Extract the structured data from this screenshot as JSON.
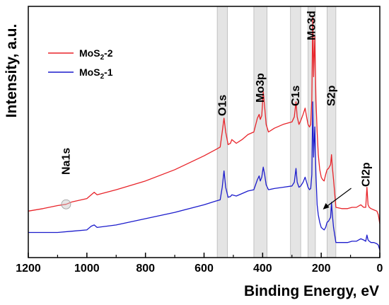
{
  "chart_data": {
    "type": "line",
    "xlabel": "Binding Energy, eV",
    "ylabel": "Intensity, a.u.",
    "xlim": [
      1200,
      0
    ],
    "x_reversed": true,
    "xticks": [
      1200,
      1000,
      800,
      600,
      400,
      200,
      0
    ],
    "y_ticks_shown": false,
    "grid": false,
    "legend_position": "top-left",
    "colors": {
      "MoS2-2": "#e8242a",
      "MoS2-1": "#1c1ccc",
      "band": "#d0d0d0"
    },
    "bands": [
      {
        "label": "O1s",
        "range": [
          555,
          520
        ]
      },
      {
        "label": "Mo3p",
        "range": [
          430,
          385
        ]
      },
      {
        "label": "C1s",
        "range": [
          305,
          270
        ]
      },
      {
        "label": "Mo3d",
        "range": [
          245,
          220
        ]
      },
      {
        "label": "S2p",
        "range": [
          180,
          150
        ]
      }
    ],
    "annotations": [
      {
        "label": "Na1s",
        "x": 1071
      },
      {
        "label": "Cl2p",
        "x": 199,
        "arrow": true
      }
    ],
    "series": [
      {
        "name": "MoS2-2",
        "legend_main": "MoS",
        "legend_sub": "2",
        "legend_suffix": "-2",
        "x": [
          1200,
          1150,
          1100,
          1071,
          1050,
          1000,
          985,
          975,
          965,
          900,
          800,
          700,
          600,
          560,
          545,
          538,
          532,
          526,
          518,
          510,
          505,
          490,
          470,
          450,
          430,
          418,
          412,
          408,
          403,
          398,
          393,
          388,
          380,
          360,
          330,
          300,
          292,
          286,
          282,
          276,
          270,
          262,
          255,
          250,
          245,
          240,
          236,
          232,
          229,
          226,
          222,
          218,
          214,
          210,
          205,
          200,
          195,
          190,
          185,
          180,
          175,
          168,
          165,
          162,
          158,
          150,
          130,
          110,
          95,
          80,
          65,
          55,
          48,
          44,
          40,
          36,
          30,
          20,
          10,
          5,
          0
        ],
        "y": [
          0.185,
          0.195,
          0.207,
          0.212,
          0.222,
          0.235,
          0.25,
          0.26,
          0.25,
          0.27,
          0.305,
          0.35,
          0.405,
          0.43,
          0.44,
          0.5,
          0.555,
          0.5,
          0.45,
          0.455,
          0.47,
          0.455,
          0.47,
          0.49,
          0.5,
          0.555,
          0.57,
          0.55,
          0.565,
          0.66,
          0.6,
          0.53,
          0.5,
          0.515,
          0.53,
          0.54,
          0.56,
          0.62,
          0.56,
          0.53,
          0.545,
          0.57,
          0.595,
          0.56,
          0.53,
          0.52,
          0.53,
          0.63,
          0.96,
          0.72,
          0.88,
          0.63,
          0.5,
          0.41,
          0.35,
          0.32,
          0.31,
          0.305,
          0.33,
          0.35,
          0.355,
          0.37,
          0.41,
          0.36,
          0.31,
          0.2,
          0.195,
          0.195,
          0.2,
          0.2,
          0.21,
          0.2,
          0.2,
          0.28,
          0.21,
          0.2,
          0.195,
          0.19,
          0.185,
          0.17,
          0.135
        ]
      },
      {
        "name": "MoS2-1",
        "legend_main": "MoS",
        "legend_sub": "2",
        "legend_suffix": "-1",
        "x": [
          1200,
          1100,
          1050,
          1000,
          985,
          975,
          965,
          900,
          800,
          700,
          600,
          560,
          545,
          538,
          532,
          526,
          518,
          510,
          505,
          490,
          470,
          450,
          430,
          418,
          412,
          408,
          403,
          398,
          393,
          388,
          380,
          360,
          330,
          300,
          292,
          286,
          282,
          276,
          270,
          262,
          255,
          250,
          245,
          240,
          236,
          232,
          229,
          226,
          222,
          218,
          214,
          210,
          205,
          200,
          195,
          190,
          185,
          180,
          175,
          168,
          165,
          162,
          158,
          150,
          130,
          110,
          95,
          80,
          65,
          55,
          48,
          44,
          40,
          36,
          30,
          20,
          10,
          5,
          0
        ],
        "y": [
          0.1,
          0.1,
          0.105,
          0.11,
          0.125,
          0.13,
          0.12,
          0.13,
          0.155,
          0.18,
          0.21,
          0.225,
          0.23,
          0.28,
          0.345,
          0.28,
          0.24,
          0.243,
          0.25,
          0.245,
          0.255,
          0.265,
          0.27,
          0.31,
          0.325,
          0.305,
          0.32,
          0.36,
          0.33,
          0.29,
          0.27,
          0.275,
          0.28,
          0.285,
          0.3,
          0.355,
          0.3,
          0.28,
          0.285,
          0.3,
          0.32,
          0.3,
          0.28,
          0.27,
          0.275,
          0.33,
          0.62,
          0.4,
          0.52,
          0.33,
          0.21,
          0.17,
          0.14,
          0.12,
          0.115,
          0.11,
          0.12,
          0.14,
          0.145,
          0.16,
          0.22,
          0.17,
          0.12,
          0.06,
          0.06,
          0.06,
          0.065,
          0.065,
          0.075,
          0.07,
          0.065,
          0.09,
          0.07,
          0.065,
          0.06,
          0.06,
          0.055,
          0.05,
          0.03
        ]
      }
    ]
  }
}
